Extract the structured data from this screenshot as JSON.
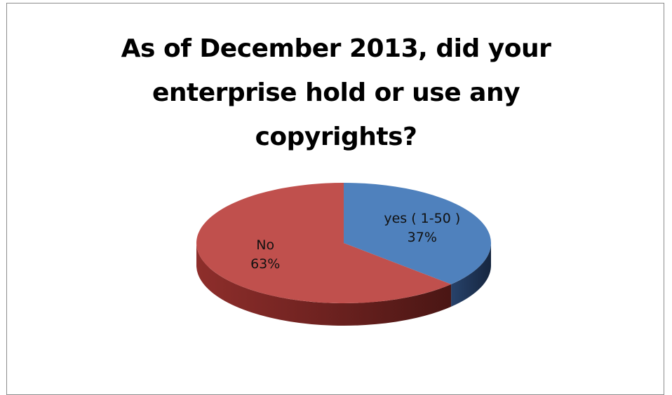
{
  "chart_data": {
    "type": "pie",
    "title_lines": [
      "As of December 2013, did your",
      "enterprise hold or use any",
      "copyrights?"
    ],
    "slices": [
      {
        "category": "yes ( 1-50 )",
        "value": 37,
        "value_label": "37%",
        "color": "#4f81bd",
        "side_color": "#223a5e"
      },
      {
        "category": "No",
        "value": 63,
        "value_label": "63%",
        "color": "#c0504d",
        "side_color": "#7a2624"
      }
    ],
    "style": "3d",
    "legend": "none",
    "data_labels": "inside"
  }
}
